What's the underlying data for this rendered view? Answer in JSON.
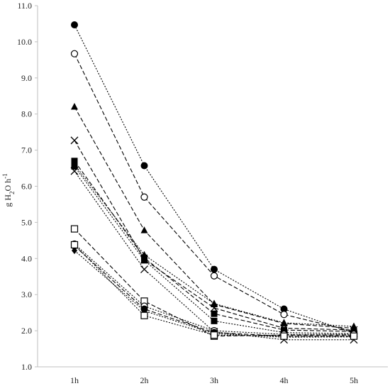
{
  "chart_data": {
    "type": "line",
    "title": "",
    "xlabel": "",
    "ylabel": {
      "parts": [
        {
          "text": "g H",
          "sub": false
        },
        {
          "text": "2",
          "sub": true
        },
        {
          "text": "O h",
          "sub": false
        },
        {
          "text": "-1",
          "sup": true
        }
      ]
    },
    "categories": [
      "1h",
      "2h",
      "3h",
      "4h",
      "5h"
    ],
    "ylim": [
      1.0,
      11.0
    ],
    "yticks": [
      "1.0",
      "2.0",
      "3.0",
      "4.0",
      "5.0",
      "6.0",
      "7.0",
      "8.0",
      "9.0",
      "10.0",
      "11.0"
    ],
    "grid": false,
    "legend": "none",
    "series": [
      {
        "marker": "filled-circle",
        "dash": "dotted",
        "values": [
          10.47,
          6.57,
          3.7,
          2.6,
          1.93
        ]
      },
      {
        "marker": "open-circle",
        "dash": "dashed",
        "values": [
          9.67,
          5.7,
          3.52,
          2.45,
          1.98
        ]
      },
      {
        "marker": "filled-triangle",
        "dash": "dashed",
        "values": [
          8.2,
          4.78,
          2.73,
          2.2,
          2.07
        ]
      },
      {
        "marker": "cross",
        "dash": "dashed",
        "values": [
          7.27,
          3.97,
          2.63,
          2.07,
          2.02
        ]
      },
      {
        "marker": "filled-square",
        "dash": "dashed",
        "values": [
          6.7,
          4.02,
          2.47,
          2.02,
          1.98
        ]
      },
      {
        "marker": "filled-triangle",
        "dash": "dotted",
        "values": [
          6.6,
          4.1,
          2.75,
          2.22,
          2.12
        ]
      },
      {
        "marker": "filled-square",
        "dash": "dotted",
        "values": [
          6.55,
          3.95,
          2.27,
          1.95,
          1.92
        ]
      },
      {
        "marker": "cross",
        "dash": "dotted",
        "values": [
          6.42,
          3.7,
          1.97,
          1.75,
          1.75
        ]
      },
      {
        "marker": "open-square",
        "dash": "dashed",
        "values": [
          4.82,
          2.82,
          1.85,
          1.88,
          1.88
        ]
      },
      {
        "marker": "open-circle",
        "dash": "dotted",
        "values": [
          4.4,
          2.68,
          2.0,
          1.9,
          1.9
        ]
      },
      {
        "marker": "filled-circle",
        "dash": "dashed",
        "values": [
          4.35,
          2.6,
          1.95,
          1.85,
          1.85
        ]
      },
      {
        "marker": "filled-diamond",
        "dash": "dotted",
        "values": [
          4.22,
          2.55,
          1.92,
          1.82,
          1.83
        ]
      },
      {
        "marker": "open-square",
        "dash": "dotted",
        "values": [
          4.38,
          2.42,
          1.88,
          1.85,
          1.85
        ]
      }
    ]
  }
}
